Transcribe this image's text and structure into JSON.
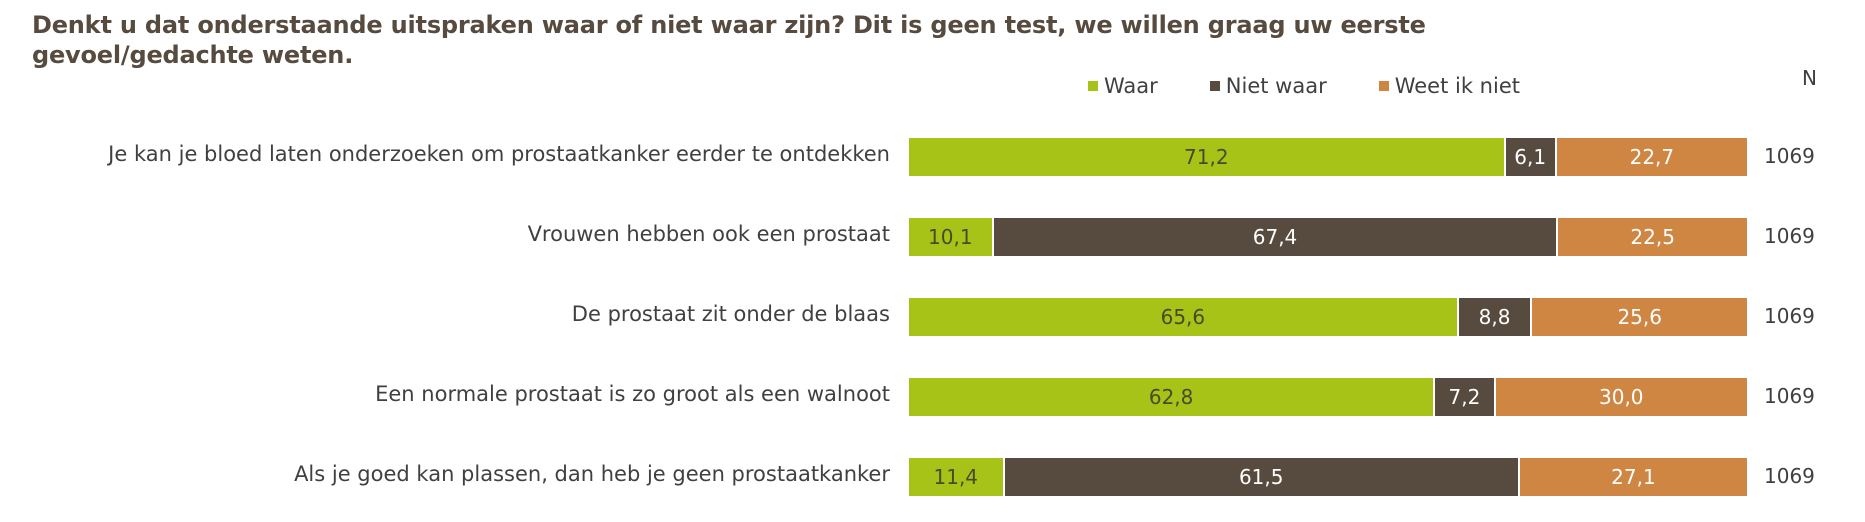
{
  "title": "Denkt u dat onderstaande uitspraken waar of niet waar zijn? Dit is geen test, we willen graag uw eerste gevoel/gedachte weten.",
  "legend": [
    {
      "label": "Waar",
      "color": "#a8c317"
    },
    {
      "label": "Niet waar",
      "color": "#574a3e"
    },
    {
      "label": "Weet ik niet",
      "color": "#d08643"
    }
  ],
  "n_header": "N",
  "rows": [
    {
      "label": "Je kan je bloed laten onderzoeken om prostaatkanker eerder te ontdekken",
      "waar": "71,2",
      "niet_waar": "6,1",
      "weet_ik_niet": "22,7",
      "n": "1069"
    },
    {
      "label": "Vrouwen hebben ook een prostaat",
      "waar": "10,1",
      "niet_waar": "67,4",
      "weet_ik_niet": "22,5",
      "n": "1069"
    },
    {
      "label": "De prostaat zit onder de blaas",
      "waar": "65,6",
      "niet_waar": "8,8",
      "weet_ik_niet": "25,6",
      "n": "1069"
    },
    {
      "label": "Een normale prostaat is zo groot als een walnoot",
      "waar": "62,8",
      "niet_waar": "7,2",
      "weet_ik_niet": "30,0",
      "n": "1069"
    },
    {
      "label": "Als je goed kan plassen, dan heb je geen prostaatkanker",
      "waar": "11,4",
      "niet_waar": "61,5",
      "weet_ik_niet": "27,1",
      "n": "1069"
    }
  ],
  "chart_data": {
    "type": "bar",
    "orientation": "horizontal",
    "stacked": true,
    "percent": true,
    "title": "Denkt u dat onderstaande uitspraken waar of niet waar zijn? Dit is geen test, we willen graag uw eerste gevoel/gedachte weten.",
    "categories": [
      "Je kan je bloed laten onderzoeken om prostaatkanker eerder te ontdekken",
      "Vrouwen hebben ook een prostaat",
      "De prostaat zit onder de blaas",
      "Een normale prostaat is zo groot als een walnoot",
      "Als je goed kan plassen, dan heb je geen prostaatkanker"
    ],
    "series": [
      {
        "name": "Waar",
        "color": "#a8c317",
        "values": [
          71.2,
          10.1,
          65.6,
          62.8,
          11.4
        ]
      },
      {
        "name": "Niet waar",
        "color": "#574a3e",
        "values": [
          6.1,
          67.4,
          8.8,
          7.2,
          61.5
        ]
      },
      {
        "name": "Weet ik niet",
        "color": "#d08643",
        "values": [
          22.7,
          22.5,
          25.6,
          30.0,
          27.1
        ]
      }
    ],
    "n_label": "N",
    "n": [
      1069,
      1069,
      1069,
      1069,
      1069
    ],
    "xlim": [
      0,
      100
    ],
    "grid": false,
    "legend_position": "top"
  }
}
